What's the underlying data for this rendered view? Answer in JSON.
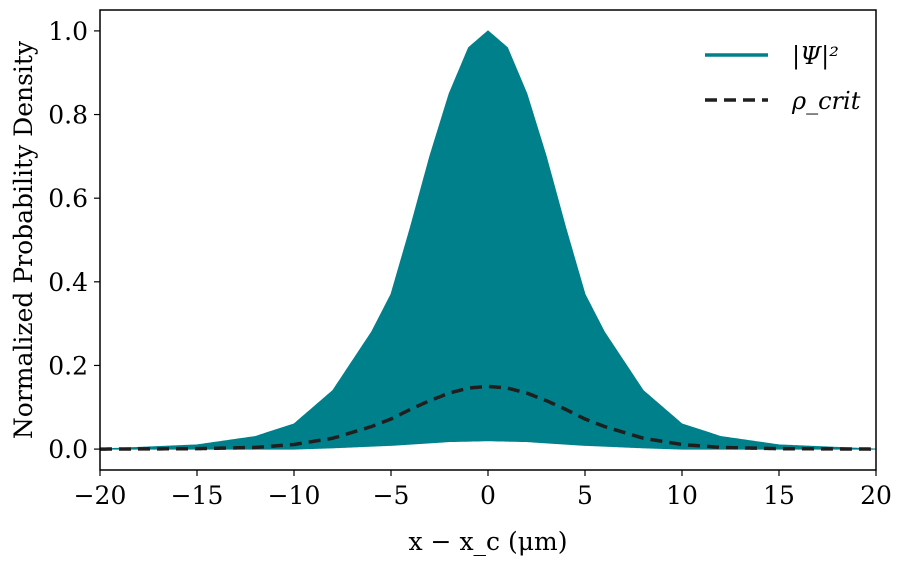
{
  "chart_data": {
    "type": "area",
    "xlabel": "x − x_c (μm)",
    "ylabel": "Normalized Probability Density",
    "xlim": [
      -20,
      20
    ],
    "ylim": [
      -0.05,
      1.05
    ],
    "xticks": [
      -20,
      -15,
      -10,
      -5,
      0,
      5,
      10,
      15,
      20
    ],
    "yticks": [
      0.0,
      0.2,
      0.4,
      0.6,
      0.8,
      1.0
    ],
    "xtick_labels": [
      "−20",
      "−15",
      "−10",
      "−5",
      "0",
      "5",
      "10",
      "15",
      "20"
    ],
    "ytick_labels": [
      "0.0",
      "0.2",
      "0.4",
      "0.6",
      "0.8",
      "1.0"
    ],
    "grid": false,
    "legend_position": "top-right",
    "series": [
      {
        "name": "|Ψ|²",
        "style": "filled-oscillating-band",
        "color": "#00808b",
        "x": [
          -20,
          -15,
          -12,
          -10,
          -8,
          -6,
          -5,
          -4,
          -3,
          -2,
          -1,
          0,
          1,
          2,
          3,
          4,
          5,
          6,
          8,
          10,
          12,
          15,
          20
        ],
        "upper": [
          0.0,
          0.01,
          0.03,
          0.06,
          0.14,
          0.28,
          0.37,
          0.53,
          0.7,
          0.85,
          0.96,
          1.0,
          0.96,
          0.85,
          0.7,
          0.53,
          0.37,
          0.28,
          0.14,
          0.06,
          0.03,
          0.01,
          0.0
        ],
        "lower": [
          0.0,
          0.0,
          0.0,
          0.0,
          0.003,
          0.007,
          0.009,
          0.012,
          0.015,
          0.018,
          0.019,
          0.02,
          0.019,
          0.018,
          0.015,
          0.012,
          0.009,
          0.007,
          0.003,
          0.0,
          0.0,
          0.0,
          0.0
        ]
      },
      {
        "name": "ρ_crit",
        "style": "dashed",
        "color": "#1f1f1f",
        "x": [
          -20,
          -15,
          -12,
          -10,
          -8,
          -6,
          -5,
          -4,
          -3,
          -2,
          -1,
          0,
          1,
          2,
          3,
          4,
          5,
          6,
          8,
          10,
          12,
          15,
          20
        ],
        "values": [
          0.0,
          0.001,
          0.004,
          0.011,
          0.026,
          0.054,
          0.072,
          0.095,
          0.116,
          0.134,
          0.146,
          0.15,
          0.146,
          0.134,
          0.116,
          0.095,
          0.072,
          0.054,
          0.026,
          0.011,
          0.004,
          0.001,
          0.0
        ]
      }
    ],
    "colors": {
      "psi": "#00808b",
      "rho": "#1f1f1f",
      "axes": "#000000"
    }
  }
}
